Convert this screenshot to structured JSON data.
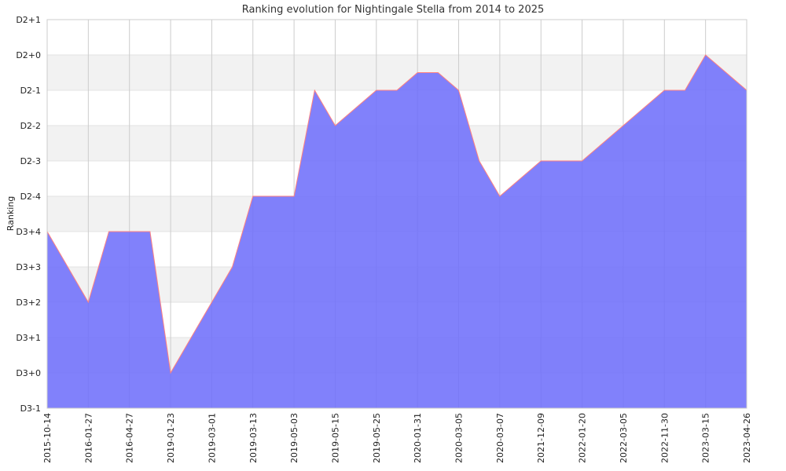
{
  "chart_data": {
    "type": "area",
    "title": "Ranking evolution for Nightingale Stella from 2014 to 2025",
    "xlabel": "",
    "ylabel": "Ranking",
    "y_tick_labels": [
      "D3-1",
      "D3+0",
      "D3+1",
      "D3+2",
      "D3+3",
      "D3+4",
      "D2-4",
      "D2-3",
      "D2-2",
      "D2-1",
      "D2+0",
      "D2+1"
    ],
    "ylim": [
      -1,
      10
    ],
    "x_tick_labels": [
      "2015-10-14",
      "2016-01-27",
      "2016-04-27",
      "2019-01-23",
      "2019-03-01",
      "2019-03-13",
      "2019-05-03",
      "2019-05-15",
      "2019-05-25",
      "2020-01-31",
      "2020-03-05",
      "2020-03-07",
      "2021-12-09",
      "2022-01-20",
      "2022-03-05",
      "2022-11-30",
      "2023-03-15",
      "2023-04-26"
    ],
    "x_positions": [
      0,
      1,
      1.5,
      2,
      2.5,
      3,
      3.5,
      4,
      4.5,
      5,
      5.5,
      6,
      6.5,
      7,
      7.5,
      8,
      8.5,
      9,
      9.5,
      10,
      10.5,
      11,
      11.5,
      12,
      12.5,
      13,
      13.5,
      14,
      14.5,
      15,
      15.5,
      16,
      17
    ],
    "values": [
      4,
      2,
      4,
      4,
      4,
      0,
      1,
      2,
      3,
      5,
      5,
      5,
      8,
      7,
      7.5,
      8,
      8,
      8.5,
      8.5,
      8,
      6,
      5,
      5.5,
      6,
      6,
      6,
      6.5,
      7,
      7.5,
      8,
      8,
      9,
      8
    ],
    "series_name": "",
    "fill_color": "#6f6ffa",
    "line_color": "#ff8080",
    "band_color": "#f2f2f2",
    "grid": true
  }
}
